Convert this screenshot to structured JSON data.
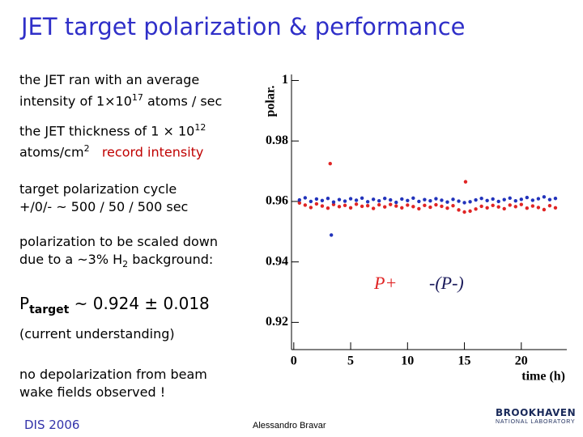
{
  "slide": {
    "title": "JET target polarization & performance",
    "bullets": [
      [
        "the JET ran with an average",
        "intensity of 1×10",
        "17",
        " atoms / sec"
      ],
      [
        "the JET thickness of 1 × 10",
        "12",
        "atoms/cm",
        "2",
        "record intensity"
      ],
      [
        "target polarization cycle",
        "+/0/- ~ 500 / 50 / 500 sec"
      ],
      [
        "polarization to be scaled down",
        "due to a ~3% H",
        "2",
        " background:"
      ],
      [
        "P",
        "target",
        " ~ 0.924 ± 0.018"
      ],
      [
        "(current understanding)"
      ],
      [
        "no depolarization from beam",
        "wake fields observed !"
      ]
    ],
    "footer_left": "DIS 2006",
    "footer_center": "Alessandro Bravar",
    "logo": [
      "BROOKHAVEN",
      "NATIONAL LABORATORY"
    ]
  },
  "chart_data": {
    "type": "scatter",
    "y_label": "polar.",
    "x_label": "time (h)",
    "xlim": [
      -0.2,
      24
    ],
    "ylim": [
      0.911,
      1.002
    ],
    "xticks": [
      0,
      5,
      10,
      15,
      20
    ],
    "yticks": [
      0.92,
      0.94,
      0.96,
      0.98,
      1
    ],
    "legend": "lower-right",
    "series": [
      {
        "name": "P+",
        "color": "#e02424",
        "x": [
          0.5,
          1,
          1.5,
          2,
          2.5,
          3,
          3.5,
          4,
          4.5,
          5,
          5.5,
          6,
          6.5,
          7,
          7.5,
          8,
          8.5,
          9,
          9.5,
          10,
          10.5,
          11,
          11.5,
          12,
          12.5,
          13,
          13.5,
          14,
          14.5,
          15,
          15.5,
          16,
          16.5,
          17,
          17.5,
          18,
          18.5,
          19,
          19.5,
          20,
          20.5,
          21,
          21.5,
          22,
          22.5,
          23,
          3.2,
          15.1
        ],
        "values": [
          0.9595,
          0.9588,
          0.958,
          0.9592,
          0.9585,
          0.9578,
          0.959,
          0.9583,
          0.9587,
          0.9579,
          0.9591,
          0.9584,
          0.9586,
          0.9577,
          0.9589,
          0.9582,
          0.959,
          0.9585,
          0.9579,
          0.9588,
          0.9583,
          0.9576,
          0.9587,
          0.9581,
          0.9589,
          0.9584,
          0.9578,
          0.9586,
          0.9572,
          0.9565,
          0.9568,
          0.9575,
          0.9584,
          0.9579,
          0.9587,
          0.9582,
          0.9576,
          0.9588,
          0.9583,
          0.959,
          0.9578,
          0.9585,
          0.958,
          0.9573,
          0.9586,
          0.9579,
          0.9725,
          0.9665
        ]
      },
      {
        "name": "-(P-)",
        "color": "#2233bb",
        "x": [
          0.5,
          1,
          1.5,
          2,
          2.5,
          3,
          3.5,
          4,
          4.5,
          5,
          5.5,
          6,
          6.5,
          7,
          7.5,
          8,
          8.5,
          9,
          9.5,
          10,
          10.5,
          11,
          11.5,
          12,
          12.5,
          13,
          13.5,
          14,
          14.5,
          15,
          15.5,
          16,
          16.5,
          17,
          17.5,
          18,
          18.5,
          19,
          19.5,
          20,
          20.5,
          21,
          21.5,
          22,
          22.5,
          23,
          3.3
        ],
        "values": [
          0.9605,
          0.9612,
          0.96,
          0.9608,
          0.9603,
          0.961,
          0.9598,
          0.9606,
          0.9601,
          0.9609,
          0.9604,
          0.9611,
          0.9599,
          0.9607,
          0.9602,
          0.961,
          0.9605,
          0.9597,
          0.9608,
          0.9603,
          0.9611,
          0.96,
          0.9606,
          0.9602,
          0.9609,
          0.9604,
          0.9598,
          0.9607,
          0.9601,
          0.9596,
          0.9599,
          0.9605,
          0.961,
          0.9603,
          0.9608,
          0.96,
          0.9606,
          0.9611,
          0.9602,
          0.9607,
          0.9613,
          0.9604,
          0.9609,
          0.9615,
          0.9606,
          0.961,
          0.9489
        ]
      }
    ]
  }
}
